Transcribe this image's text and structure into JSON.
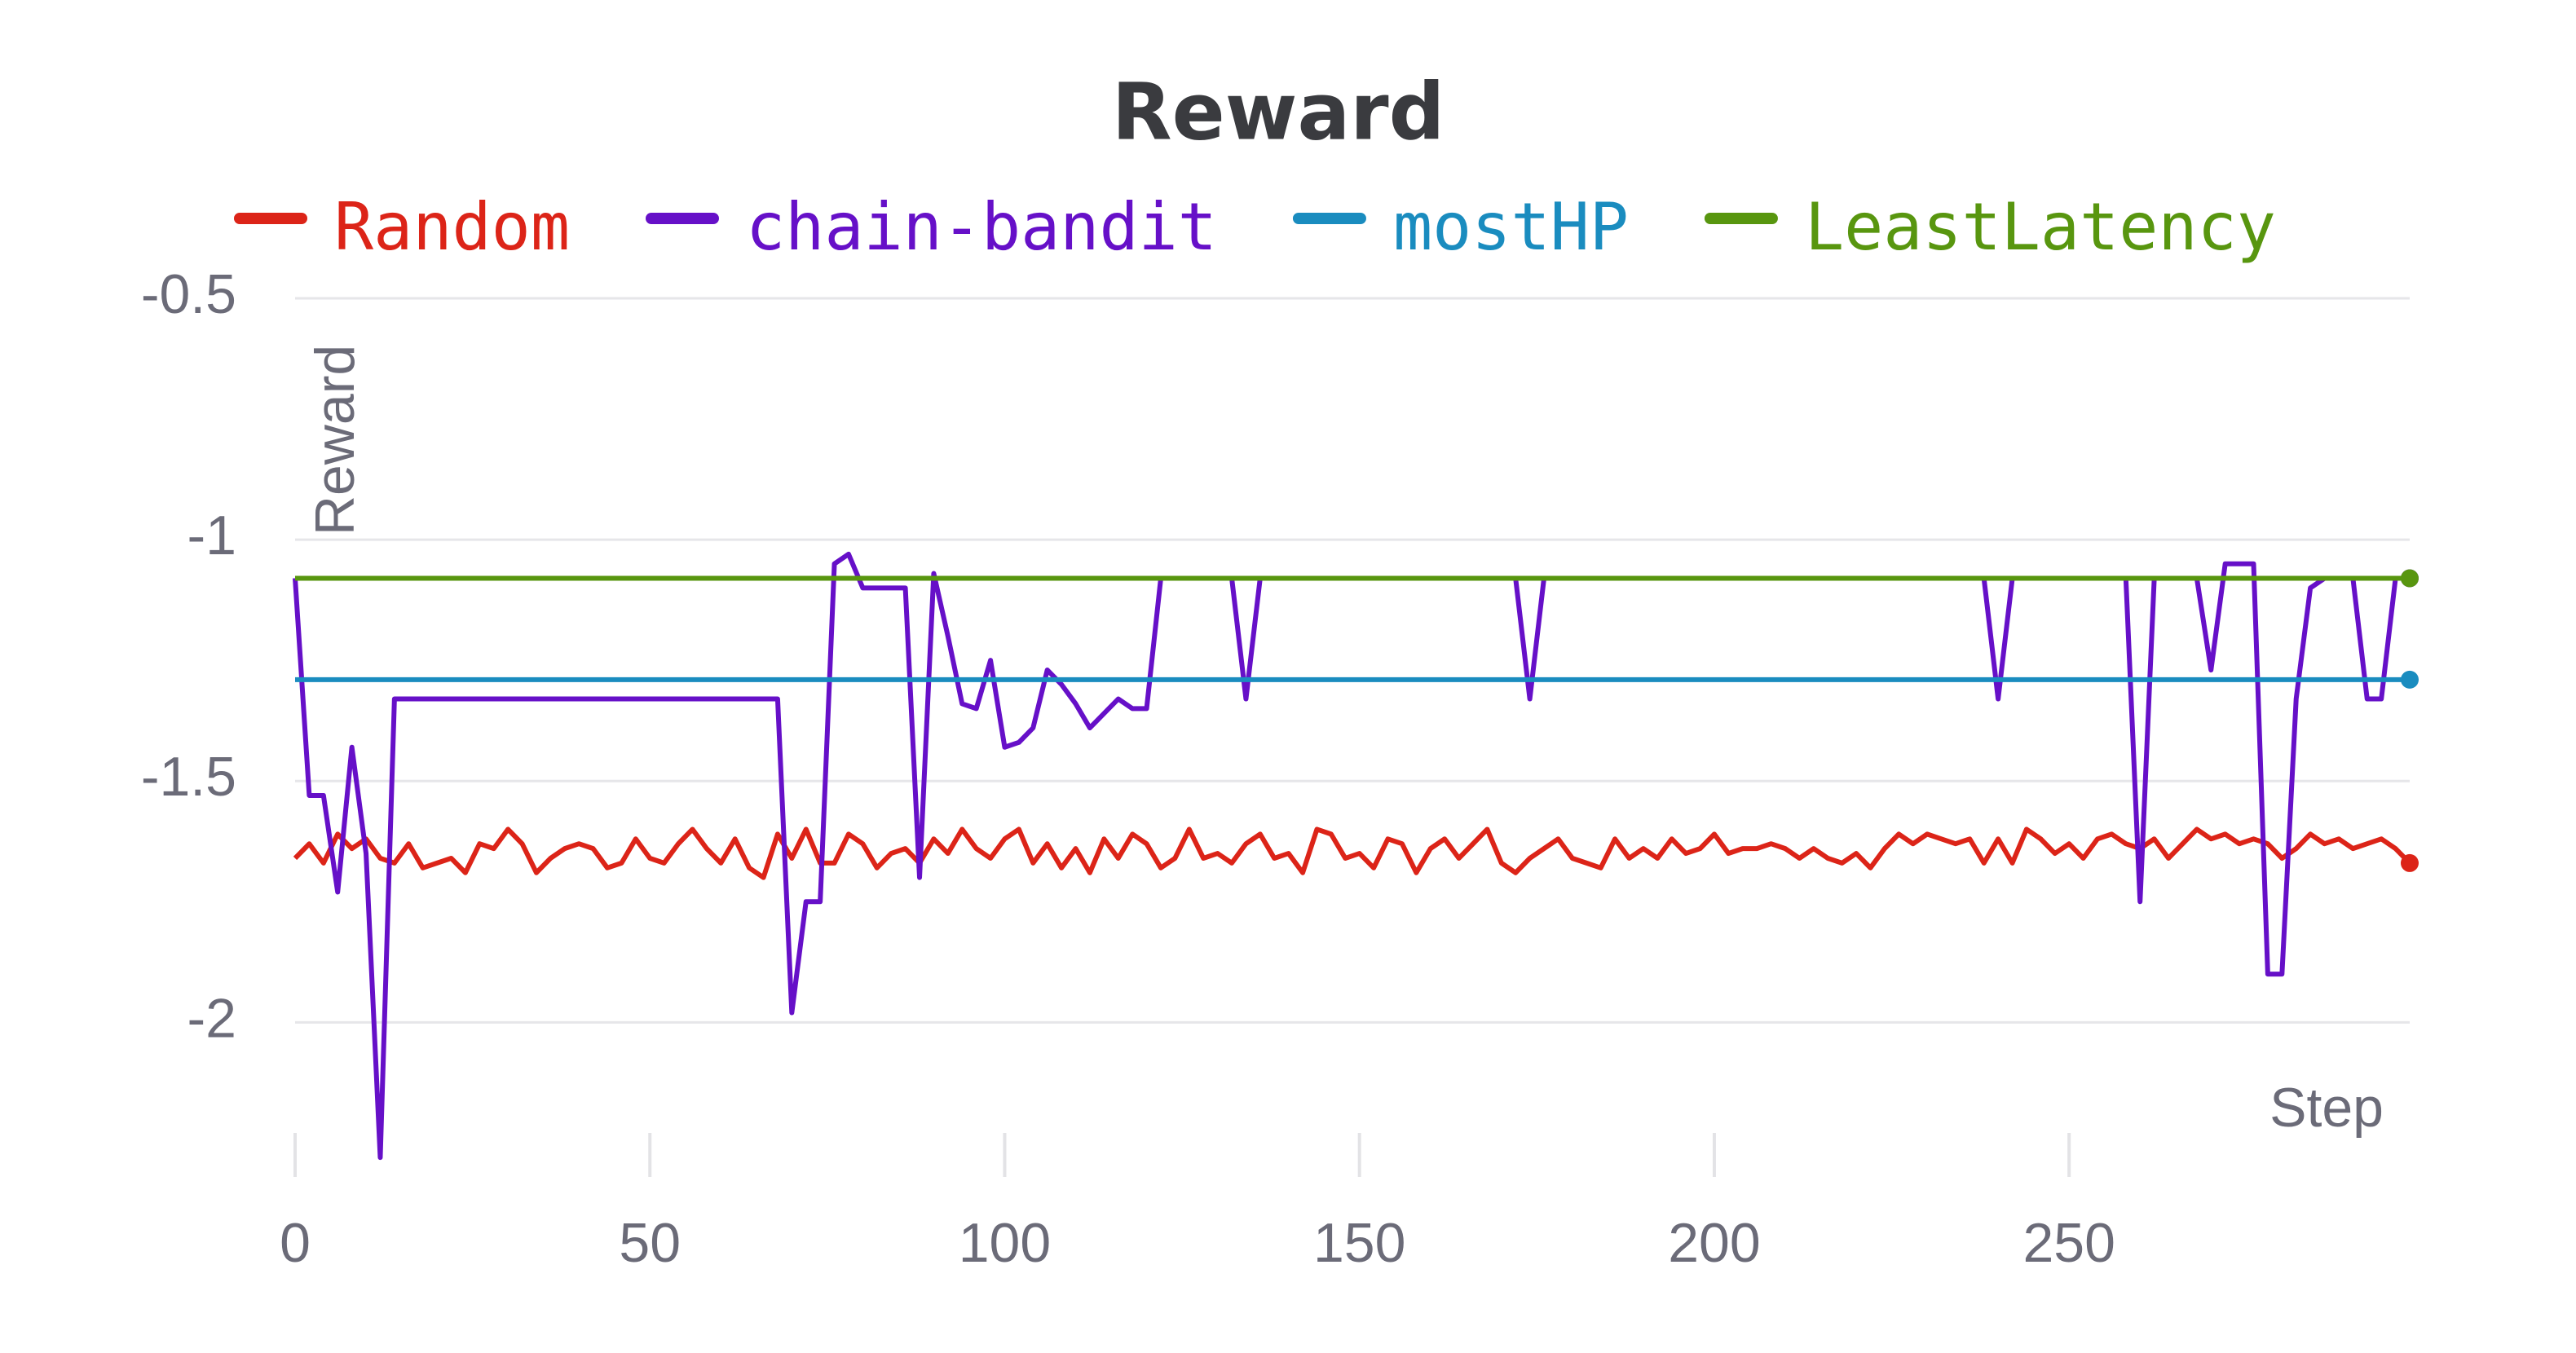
{
  "chart_data": {
    "type": "line",
    "title": "Reward",
    "x_label": "Step",
    "y_label": "Reward",
    "grid": true,
    "xlim": [
      0,
      298
    ],
    "ylim": [
      -2.3,
      -0.5
    ],
    "xticks": [
      0,
      50,
      100,
      150,
      200,
      250
    ],
    "yticks": [
      -0.5,
      -1,
      -1.5,
      -2
    ],
    "x": [
      0,
      2,
      4,
      6,
      8,
      10,
      12,
      14,
      16,
      18,
      20,
      22,
      24,
      26,
      28,
      30,
      32,
      34,
      36,
      38,
      40,
      42,
      44,
      46,
      48,
      50,
      52,
      54,
      56,
      58,
      60,
      62,
      64,
      66,
      68,
      70,
      72,
      74,
      76,
      78,
      80,
      82,
      84,
      86,
      88,
      90,
      92,
      94,
      96,
      98,
      100,
      102,
      104,
      106,
      108,
      110,
      112,
      114,
      116,
      118,
      120,
      122,
      124,
      126,
      128,
      130,
      132,
      134,
      136,
      138,
      140,
      142,
      144,
      146,
      148,
      150,
      152,
      154,
      156,
      158,
      160,
      162,
      164,
      166,
      168,
      170,
      172,
      174,
      176,
      178,
      180,
      182,
      184,
      186,
      188,
      190,
      192,
      194,
      196,
      198,
      200,
      202,
      204,
      206,
      208,
      210,
      212,
      214,
      216,
      218,
      220,
      222,
      224,
      226,
      228,
      230,
      232,
      234,
      236,
      238,
      240,
      242,
      244,
      246,
      248,
      250,
      252,
      254,
      256,
      258,
      260,
      262,
      264,
      266,
      268,
      270,
      272,
      274,
      276,
      278,
      280,
      282,
      284,
      286,
      288,
      290,
      292,
      294,
      296,
      298
    ],
    "series": [
      {
        "name": "Random",
        "color": "#dc2418",
        "values": [
          -1.66,
          -1.63,
          -1.67,
          -1.61,
          -1.64,
          -1.62,
          -1.66,
          -1.67,
          -1.63,
          -1.68,
          -1.67,
          -1.66,
          -1.69,
          -1.63,
          -1.64,
          -1.6,
          -1.63,
          -1.69,
          -1.66,
          -1.64,
          -1.63,
          -1.64,
          -1.68,
          -1.67,
          -1.62,
          -1.66,
          -1.67,
          -1.63,
          -1.6,
          -1.64,
          -1.67,
          -1.62,
          -1.68,
          -1.7,
          -1.61,
          -1.66,
          -1.6,
          -1.67,
          -1.67,
          -1.61,
          -1.63,
          -1.68,
          -1.65,
          -1.64,
          -1.67,
          -1.62,
          -1.65,
          -1.6,
          -1.64,
          -1.66,
          -1.62,
          -1.6,
          -1.67,
          -1.63,
          -1.68,
          -1.64,
          -1.69,
          -1.62,
          -1.66,
          -1.61,
          -1.63,
          -1.68,
          -1.66,
          -1.6,
          -1.66,
          -1.65,
          -1.67,
          -1.63,
          -1.61,
          -1.66,
          -1.65,
          -1.69,
          -1.6,
          -1.61,
          -1.66,
          -1.65,
          -1.68,
          -1.62,
          -1.63,
          -1.69,
          -1.64,
          -1.62,
          -1.66,
          -1.63,
          -1.6,
          -1.67,
          -1.69,
          -1.66,
          -1.64,
          -1.62,
          -1.66,
          -1.67,
          -1.68,
          -1.62,
          -1.66,
          -1.64,
          -1.66,
          -1.62,
          -1.65,
          -1.64,
          -1.61,
          -1.65,
          -1.64,
          -1.64,
          -1.63,
          -1.64,
          -1.66,
          -1.64,
          -1.66,
          -1.67,
          -1.65,
          -1.68,
          -1.64,
          -1.61,
          -1.63,
          -1.61,
          -1.62,
          -1.63,
          -1.62,
          -1.67,
          -1.62,
          -1.67,
          -1.6,
          -1.62,
          -1.65,
          -1.63,
          -1.66,
          -1.62,
          -1.61,
          -1.63,
          -1.64,
          -1.62,
          -1.66,
          -1.63,
          -1.6,
          -1.62,
          -1.61,
          -1.63,
          -1.62,
          -1.63,
          -1.66,
          -1.64,
          -1.61,
          -1.63,
          -1.62,
          -1.64,
          -1.63,
          -1.62,
          -1.64,
          -1.67
        ]
      },
      {
        "name": "chain-bandit",
        "color": "#6610c8",
        "values": [
          -1.08,
          -1.53,
          -1.53,
          -1.73,
          -1.43,
          -1.65,
          -2.28,
          -1.33,
          -1.33,
          -1.33,
          -1.33,
          -1.33,
          -1.33,
          -1.33,
          -1.33,
          -1.33,
          -1.33,
          -1.33,
          -1.33,
          -1.33,
          -1.33,
          -1.33,
          -1.33,
          -1.33,
          -1.33,
          -1.33,
          -1.33,
          -1.33,
          -1.33,
          -1.33,
          -1.33,
          -1.33,
          -1.33,
          -1.33,
          -1.33,
          -1.98,
          -1.75,
          -1.75,
          -1.05,
          -1.03,
          -1.1,
          -1.1,
          -1.1,
          -1.1,
          -1.7,
          -1.07,
          -1.2,
          -1.34,
          -1.35,
          -1.25,
          -1.43,
          -1.42,
          -1.39,
          -1.27,
          -1.3,
          -1.34,
          -1.39,
          -1.36,
          -1.33,
          -1.35,
          -1.35,
          -1.08,
          -1.08,
          -1.08,
          -1.08,
          -1.08,
          -1.08,
          -1.33,
          -1.08,
          -1.08,
          -1.08,
          -1.08,
          -1.08,
          -1.08,
          -1.08,
          -1.08,
          -1.08,
          -1.08,
          -1.08,
          -1.08,
          -1.08,
          -1.08,
          -1.08,
          -1.08,
          -1.08,
          -1.08,
          -1.08,
          -1.33,
          -1.08,
          -1.08,
          -1.08,
          -1.08,
          -1.08,
          -1.08,
          -1.08,
          -1.08,
          -1.08,
          -1.08,
          -1.08,
          -1.08,
          -1.08,
          -1.08,
          -1.08,
          -1.08,
          -1.08,
          -1.08,
          -1.08,
          -1.08,
          -1.08,
          -1.08,
          -1.08,
          -1.08,
          -1.08,
          -1.08,
          -1.08,
          -1.08,
          -1.08,
          -1.08,
          -1.08,
          -1.08,
          -1.33,
          -1.08,
          -1.08,
          -1.08,
          -1.08,
          -1.08,
          -1.08,
          -1.08,
          -1.08,
          -1.08,
          -1.75,
          -1.08,
          -1.08,
          -1.08,
          -1.08,
          -1.27,
          -1.05,
          -1.05,
          -1.05,
          -1.9,
          -1.9,
          -1.33,
          -1.1,
          -1.08,
          -1.08,
          -1.08,
          -1.33,
          -1.33,
          -1.08,
          -1.08
        ]
      },
      {
        "name": "mostHP",
        "color": "#1a8cbf",
        "x": [
          0,
          298
        ],
        "values": [
          -1.29,
          -1.29
        ]
      },
      {
        "name": "LeastLatency",
        "color": "#58960f",
        "x": [
          0,
          298
        ],
        "values": [
          -1.08,
          -1.08
        ]
      }
    ]
  }
}
